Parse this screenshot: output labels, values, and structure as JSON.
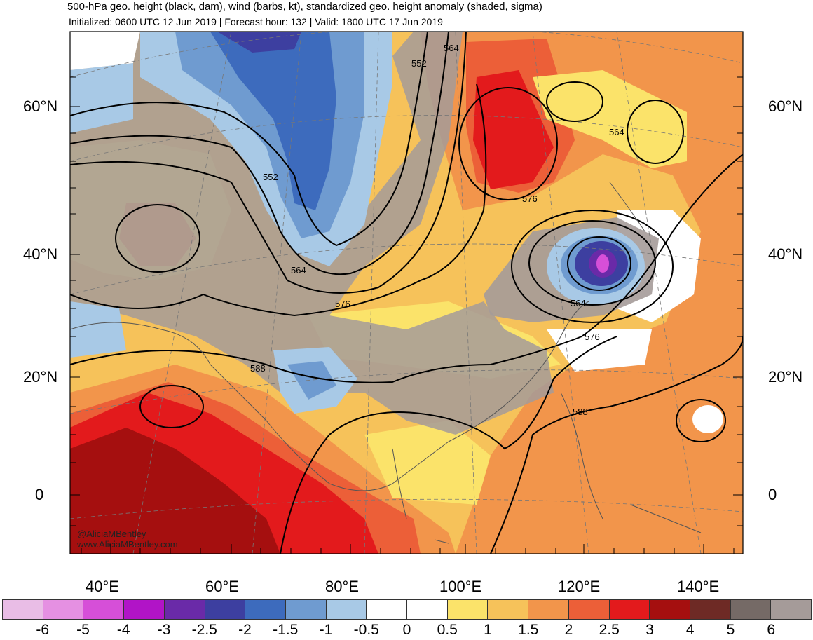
{
  "title": "500-hPa geo. height (black, dam), wind (barbs, kt), standardized geo. height anomaly (shaded, sigma)",
  "subtitle": "Initialized: 0600 UTC 12 Jun 2019 | Forecast hour: 132 | Valid: 1800 UTC 17 Jun 2019",
  "lat_labels": [
    "60°N",
    "40°N",
    "20°N",
    "0"
  ],
  "lon_labels": [
    "40°E",
    "60°E",
    "80°E",
    "100°E",
    "120°E",
    "140°E"
  ],
  "contour_labels": [
    "552",
    "552",
    "564",
    "564",
    "564",
    "576",
    "576",
    "576",
    "564",
    "588",
    "588"
  ],
  "credit": {
    "handle": "@AliciaMBentley",
    "site": "www.AliciaMBentley.com"
  },
  "colorbar": {
    "ticks": [
      "-6",
      "-5",
      "-4",
      "-3",
      "-2.5",
      "-2",
      "-1.5",
      "-1",
      "-0.5",
      "0",
      "0.5",
      "1",
      "1.5",
      "2",
      "2.5",
      "3",
      "4",
      "5",
      "6"
    ],
    "colors": [
      "#e9bde6",
      "#e590e2",
      "#d64fd8",
      "#b114c7",
      "#6a2aa8",
      "#3d3fa0",
      "#3d6bbd",
      "#6f9bd0",
      "#a8c9e6",
      "#ffffff",
      "#ffffff",
      "#fbe36a",
      "#f6c25a",
      "#f2954b",
      "#ec5f38",
      "#e31a1c",
      "#a50f0f",
      "#6e2a25",
      "#756a66",
      "#a59b99"
    ]
  }
}
